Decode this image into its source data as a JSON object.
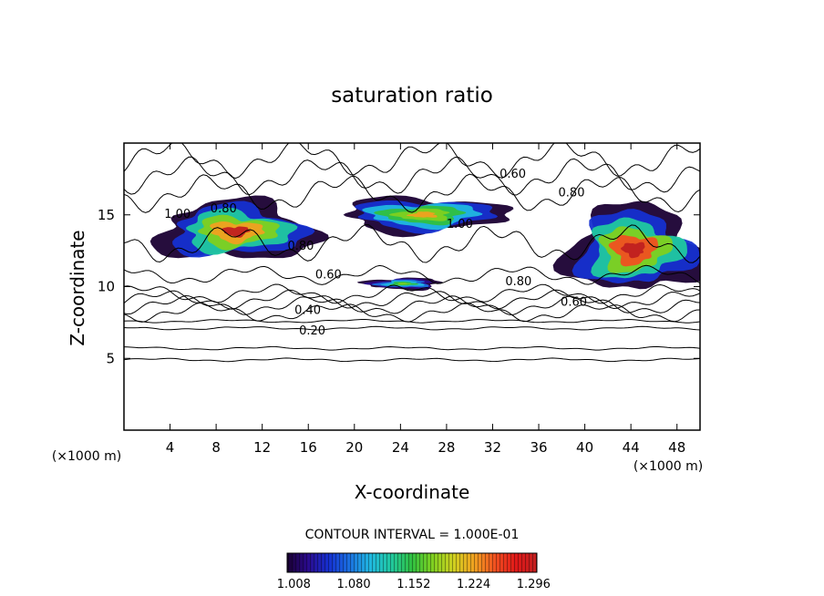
{
  "chart_data": {
    "type": "heatmap",
    "title": "saturation ratio",
    "xlabel": "X-coordinate",
    "ylabel": "Z-coordinate",
    "x_unit": "(×1000 m)",
    "xlim": [
      0,
      50
    ],
    "ylim": [
      0,
      20
    ],
    "x_ticks": [
      4,
      8,
      12,
      16,
      20,
      24,
      28,
      32,
      36,
      40,
      44,
      48
    ],
    "y_ticks": [
      5,
      10,
      15
    ],
    "contour_interval_text": "CONTOUR INTERVAL = 1.000E-01",
    "contour_interval": 0.1,
    "contour_labels": [
      {
        "text": "0.60",
        "x": 32.6,
        "z": 17.9
      },
      {
        "text": "0.80",
        "x": 37.7,
        "z": 16.6
      },
      {
        "text": "0.80",
        "x": 7.5,
        "z": 15.5
      },
      {
        "text": "1.00",
        "x": 3.5,
        "z": 15.1
      },
      {
        "text": "1.00",
        "x": 28.0,
        "z": 14.4
      },
      {
        "text": "0.80",
        "x": 14.2,
        "z": 12.9
      },
      {
        "text": "0.60",
        "x": 16.6,
        "z": 10.9
      },
      {
        "text": "0.80",
        "x": 33.1,
        "z": 10.4
      },
      {
        "text": "0.60",
        "x": 37.9,
        "z": 9.0
      },
      {
        "text": "0.40",
        "x": 14.8,
        "z": 8.4
      },
      {
        "text": "0.20",
        "x": 15.2,
        "z": 7.0
      }
    ],
    "colorbar": {
      "ticks": [
        "1.008",
        "1.080",
        "1.152",
        "1.224",
        "1.296"
      ],
      "range": [
        1.0,
        1.3
      ],
      "colors": [
        "#1a0033",
        "#2a0a8c",
        "#1530d0",
        "#1a70e0",
        "#20b8e0",
        "#20c8a0",
        "#30c040",
        "#80d020",
        "#d0d020",
        "#f0a020",
        "#f05020",
        "#e01818",
        "#c02020"
      ]
    },
    "supersaturated_regions": [
      {
        "x": [
          3.0,
          16.5
        ],
        "z": [
          11.8,
          15.9
        ],
        "peak": 1.29
      },
      {
        "x": [
          19.0,
          33.0
        ],
        "z": [
          13.8,
          16.2
        ],
        "peak": 1.23
      },
      {
        "x": [
          21.0,
          27.5
        ],
        "z": [
          9.8,
          10.6
        ],
        "peak": 1.18
      },
      {
        "x": [
          38.5,
          50.0
        ],
        "z": [
          9.6,
          15.6
        ],
        "peak": 1.3
      }
    ],
    "grid": false,
    "legend": "bottom-center"
  }
}
